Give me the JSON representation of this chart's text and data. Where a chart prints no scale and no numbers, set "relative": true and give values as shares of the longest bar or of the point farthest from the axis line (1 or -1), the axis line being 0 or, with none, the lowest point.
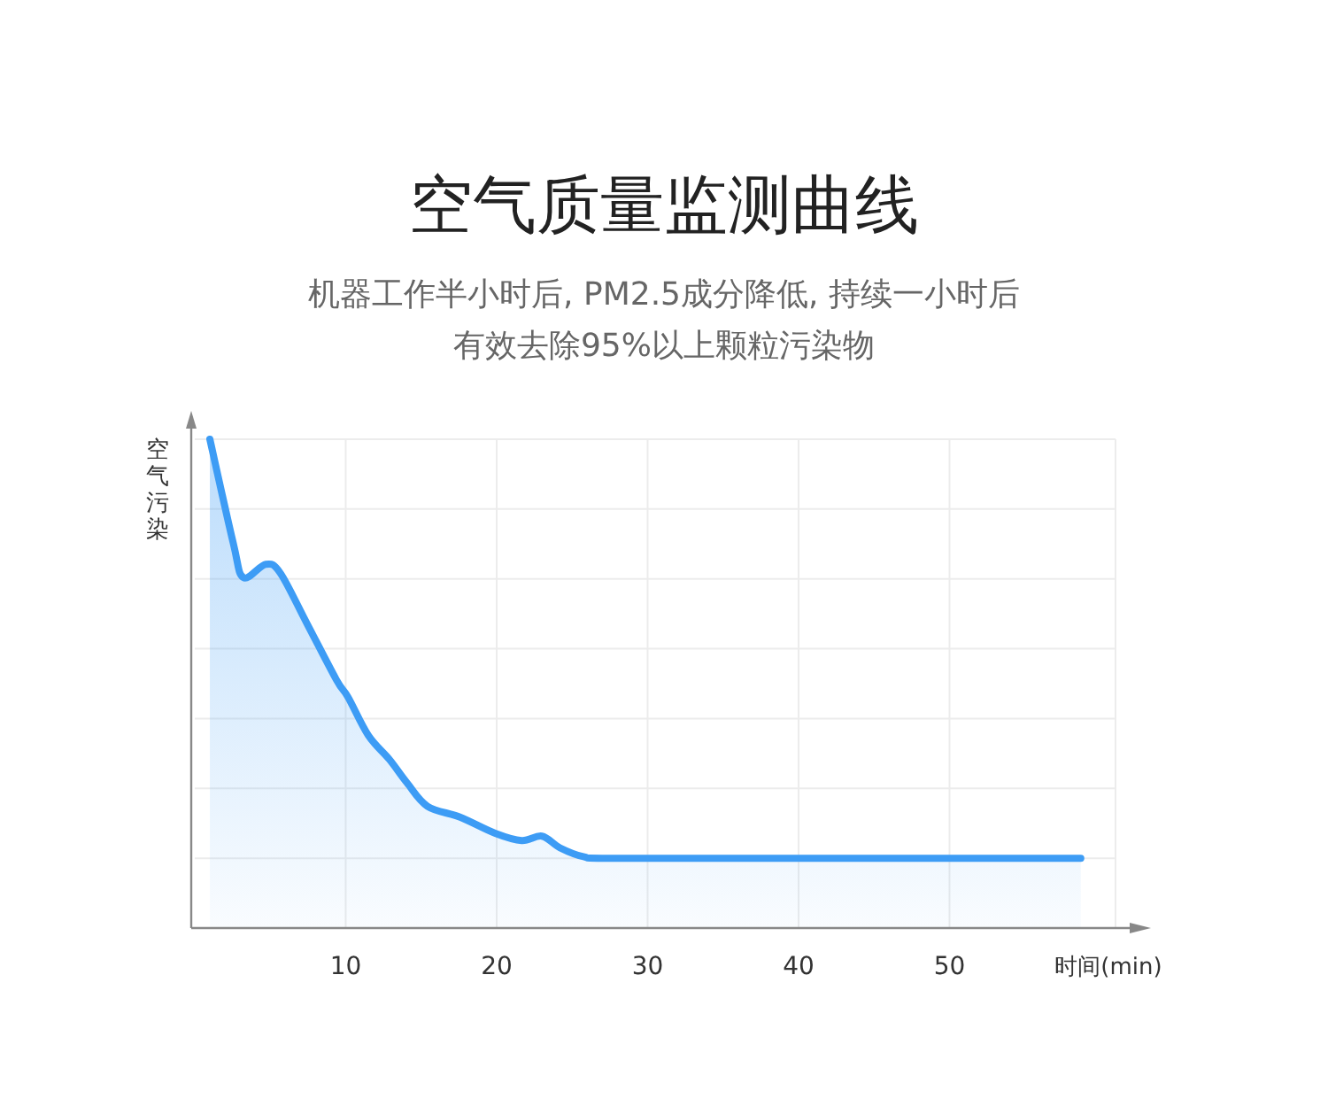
{
  "chart_data": {
    "type": "area",
    "title": "空气质量监测曲线",
    "subtitle": "机器工作半小时后, PM2.5成分降低, 持续一小时后有效去除95%以上颗粒污染物",
    "xlabel": "时间(min)",
    "ylabel": "空气污染",
    "relative": true,
    "grid": true,
    "line_style": "solid",
    "xlim": [
      0,
      61
    ],
    "xticks": [
      10,
      20,
      30,
      40,
      50
    ],
    "series": [
      {
        "color": "#3d9cf5",
        "x": [
          1.0,
          2.56,
          3.22,
          4.7,
          5.67,
          7.43,
          9.38,
          10.16,
          11.5,
          12.89,
          14.06,
          15.42,
          17.57,
          19.9,
          21.66,
          23.0,
          24.2,
          25.75,
          27.7,
          40,
          58.7
        ],
        "values": [
          1.0,
          0.786,
          0.717,
          0.744,
          0.726,
          0.623,
          0.508,
          0.472,
          0.394,
          0.345,
          0.297,
          0.249,
          0.227,
          0.194,
          0.179,
          0.188,
          0.164,
          0.146,
          0.1425,
          0.1425,
          0.1425
        ]
      }
    ]
  }
}
